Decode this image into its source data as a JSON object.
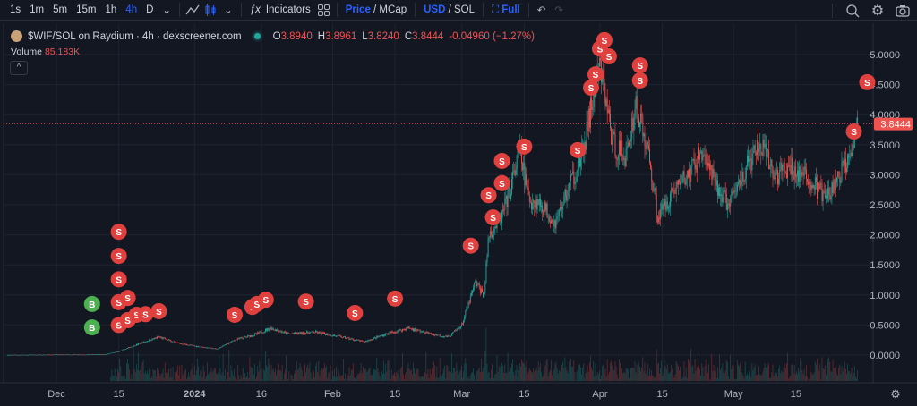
{
  "toolbar": {
    "intervals": [
      "1s",
      "1m",
      "5m",
      "15m",
      "1h",
      "4h",
      "D"
    ],
    "active_interval": "4h",
    "indicators_label": "Indicators",
    "price_label": "Price",
    "mcap_label": "/ MCap",
    "usd_label": "USD",
    "sol_label": "/ SOL",
    "full_label": "Full"
  },
  "legend": {
    "title": "$WIF/SOL on Raydium · 4h · dexscreener.com",
    "o_label": "O",
    "o": "3.8940",
    "h_label": "H",
    "h": "3.8961",
    "l_label": "L",
    "l": "3.8240",
    "c_label": "C",
    "c": "3.8444",
    "change": "-0.04960 (−1.27%)",
    "volume_label": "Volume",
    "volume": "85.183K"
  },
  "colors": {
    "up": "#26a69a",
    "down": "#ef5350",
    "sell_marker": "#e0413f",
    "buy_marker": "#4caf50",
    "accent": "#2962ff",
    "background": "#131722"
  },
  "chart_data": {
    "type": "candlestick",
    "y_ticks": [
      "5.0000",
      "4.5000",
      "4.0000",
      "3.5000",
      "3.0000",
      "2.5000",
      "2.0000",
      "1.5000",
      "1.0000",
      "0.5000",
      "0.0000"
    ],
    "ylim": [
      0,
      5.0
    ],
    "x_ticks": [
      {
        "label": "Dec",
        "date": "2023-12-01"
      },
      {
        "label": "15",
        "date": "2023-12-15"
      },
      {
        "label": "2024",
        "date": "2024-01-01",
        "bold": true
      },
      {
        "label": "16",
        "date": "2024-01-16"
      },
      {
        "label": "Feb",
        "date": "2024-02-01"
      },
      {
        "label": "15",
        "date": "2024-02-15"
      },
      {
        "label": "Mar",
        "date": "2024-03-01"
      },
      {
        "label": "15",
        "date": "2024-03-15"
      },
      {
        "label": "Apr",
        "date": "2024-04-01"
      },
      {
        "label": "15",
        "date": "2024-04-15"
      },
      {
        "label": "May",
        "date": "2024-05-01"
      },
      {
        "label": "15",
        "date": "2024-05-15"
      }
    ],
    "last_price": "3.8444",
    "price_path": [
      [
        "2023-11-20",
        0.0
      ],
      [
        "2023-12-12",
        0.01
      ],
      [
        "2023-12-15",
        0.06
      ],
      [
        "2023-12-20",
        0.2
      ],
      [
        "2023-12-24",
        0.3
      ],
      [
        "2023-12-28",
        0.2
      ],
      [
        "2024-01-01",
        0.15
      ],
      [
        "2024-01-06",
        0.1
      ],
      [
        "2024-01-10",
        0.25
      ],
      [
        "2024-01-15",
        0.35
      ],
      [
        "2024-01-18",
        0.45
      ],
      [
        "2024-01-22",
        0.35
      ],
      [
        "2024-01-28",
        0.38
      ],
      [
        "2024-02-03",
        0.3
      ],
      [
        "2024-02-08",
        0.22
      ],
      [
        "2024-02-13",
        0.35
      ],
      [
        "2024-02-18",
        0.45
      ],
      [
        "2024-02-23",
        0.35
      ],
      [
        "2024-02-27",
        0.3
      ],
      [
        "2024-03-01",
        0.5
      ],
      [
        "2024-03-04",
        1.2
      ],
      [
        "2024-03-06",
        1.0
      ],
      [
        "2024-03-07",
        2.0
      ],
      [
        "2024-03-10",
        2.3
      ],
      [
        "2024-03-12",
        2.8
      ],
      [
        "2024-03-14",
        3.4
      ],
      [
        "2024-03-16",
        2.6
      ],
      [
        "2024-03-19",
        2.5
      ],
      [
        "2024-03-22",
        2.2
      ],
      [
        "2024-03-25",
        2.8
      ],
      [
        "2024-03-28",
        3.3
      ],
      [
        "2024-03-31",
        4.5
      ],
      [
        "2024-04-01",
        4.8
      ],
      [
        "2024-04-04",
        3.5
      ],
      [
        "2024-04-07",
        3.3
      ],
      [
        "2024-04-09",
        4.2
      ],
      [
        "2024-04-12",
        3.3
      ],
      [
        "2024-04-14",
        2.3
      ],
      [
        "2024-04-18",
        2.8
      ],
      [
        "2024-04-21",
        3.0
      ],
      [
        "2024-04-24",
        3.4
      ],
      [
        "2024-04-27",
        2.8
      ],
      [
        "2024-04-30",
        2.5
      ],
      [
        "2024-05-03",
        3.0
      ],
      [
        "2024-05-07",
        3.5
      ],
      [
        "2024-05-10",
        3.0
      ],
      [
        "2024-05-14",
        3.1
      ],
      [
        "2024-05-18",
        2.9
      ],
      [
        "2024-05-22",
        2.6
      ],
      [
        "2024-05-25",
        3.0
      ],
      [
        "2024-05-27",
        3.4
      ],
      [
        "2024-05-29",
        3.84
      ]
    ],
    "markers": [
      {
        "t": "B",
        "date": "2023-12-09",
        "price": 0.85
      },
      {
        "t": "B",
        "date": "2023-12-09",
        "price": 0.46
      },
      {
        "t": "S",
        "date": "2023-12-15",
        "price": 2.05
      },
      {
        "t": "S",
        "date": "2023-12-15",
        "price": 1.65
      },
      {
        "t": "S",
        "date": "2023-12-15",
        "price": 1.26
      },
      {
        "t": "S",
        "date": "2023-12-15",
        "price": 0.88
      },
      {
        "t": "S",
        "date": "2023-12-15",
        "price": 0.5
      },
      {
        "t": "S",
        "date": "2023-12-17",
        "price": 0.95
      },
      {
        "t": "S",
        "date": "2023-12-17",
        "price": 0.58
      },
      {
        "t": "S",
        "date": "2023-12-19",
        "price": 0.67
      },
      {
        "t": "S",
        "date": "2023-12-21",
        "price": 0.68
      },
      {
        "t": "S",
        "date": "2023-12-24",
        "price": 0.73
      },
      {
        "t": "S",
        "date": "2024-01-10",
        "price": 0.67
      },
      {
        "t": "S",
        "date": "2024-01-14",
        "price": 0.8
      },
      {
        "t": "S",
        "date": "2024-01-15",
        "price": 0.85
      },
      {
        "t": "S",
        "date": "2024-01-17",
        "price": 0.92
      },
      {
        "t": "S",
        "date": "2024-01-26",
        "price": 0.89
      },
      {
        "t": "S",
        "date": "2024-02-06",
        "price": 0.7
      },
      {
        "t": "S",
        "date": "2024-02-15",
        "price": 0.94
      },
      {
        "t": "S",
        "date": "2024-03-03",
        "price": 1.82
      },
      {
        "t": "S",
        "date": "2024-03-08",
        "price": 2.29
      },
      {
        "t": "S",
        "date": "2024-03-07",
        "price": 2.66
      },
      {
        "t": "S",
        "date": "2024-03-10",
        "price": 2.86
      },
      {
        "t": "S",
        "date": "2024-03-10",
        "price": 3.23
      },
      {
        "t": "S",
        "date": "2024-03-15",
        "price": 3.47
      },
      {
        "t": "S",
        "date": "2024-03-27",
        "price": 3.41
      },
      {
        "t": "S",
        "date": "2024-03-30",
        "price": 4.45
      },
      {
        "t": "S",
        "date": "2024-03-31",
        "price": 4.67
      },
      {
        "t": "S",
        "date": "2024-04-01",
        "price": 5.1
      },
      {
        "t": "S",
        "date": "2024-04-02",
        "price": 5.24
      },
      {
        "t": "S",
        "date": "2024-04-03",
        "price": 4.97
      },
      {
        "t": "S",
        "date": "2024-04-10",
        "price": 4.82
      },
      {
        "t": "S",
        "date": "2024-04-10",
        "price": 4.57
      },
      {
        "t": "S",
        "date": "2024-05-28",
        "price": 3.72
      },
      {
        "t": "S",
        "date": "2024-05-31",
        "price": 4.54
      }
    ]
  }
}
